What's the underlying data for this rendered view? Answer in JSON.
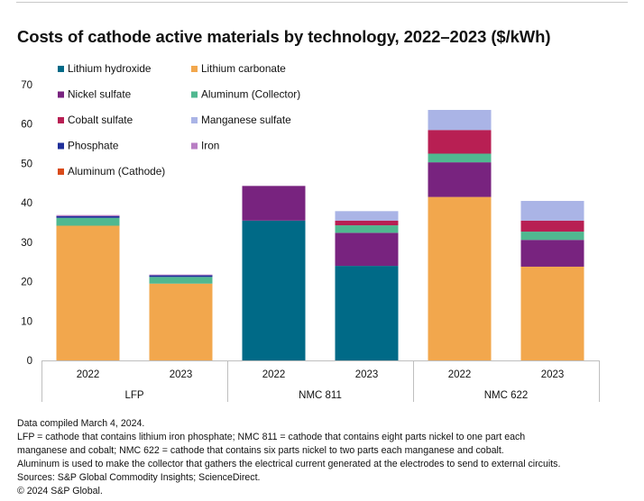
{
  "title": "Costs of cathode active materials by technology, 2022–2023 ($/kWh)",
  "chart_data": {
    "type": "stacked-bar",
    "title": "Costs of cathode active materials by technology, 2022–2023 ($/kWh)",
    "xlabel": "",
    "ylabel": "",
    "ylim": [
      0,
      70
    ],
    "yticks": [
      0,
      10,
      20,
      30,
      40,
      50,
      60,
      70
    ],
    "grid": false,
    "legend_position": "top-left, two columns inside plot",
    "groups": [
      "LFP",
      "NMC 811",
      "NMC 622"
    ],
    "categories": [
      "2022",
      "2023",
      "2022",
      "2023",
      "2022",
      "2023"
    ],
    "category_groups": [
      "LFP",
      "LFP",
      "NMC 811",
      "NMC 811",
      "NMC 622",
      "NMC 622"
    ],
    "series": [
      {
        "name": "Lithium hydroxide",
        "color": "#006a87",
        "values": [
          0,
          0,
          35.5,
          24.0,
          0,
          0
        ]
      },
      {
        "name": "Lithium carbonate",
        "color": "#f2a74d",
        "values": [
          34.2,
          19.5,
          0,
          0,
          41.5,
          23.8
        ]
      },
      {
        "name": "Nickel sulfate",
        "color": "#78237f",
        "values": [
          0,
          0,
          8.8,
          8.4,
          8.8,
          6.8
        ]
      },
      {
        "name": "Aluminum (Collector)",
        "color": "#50b890",
        "values": [
          2.0,
          1.7,
          0,
          1.9,
          2.2,
          2.1
        ]
      },
      {
        "name": "Cobalt sulfate",
        "color": "#b81f53",
        "values": [
          0,
          0,
          0,
          1.2,
          6.0,
          2.8
        ]
      },
      {
        "name": "Manganese sulfate",
        "color": "#aab4e6",
        "values": [
          0,
          0,
          0,
          2.4,
          5.1,
          5.0
        ]
      },
      {
        "name": "Phosphate",
        "color": "#1f2f99",
        "values": [
          0.4,
          0.4,
          0,
          0,
          0,
          0
        ]
      },
      {
        "name": "Iron",
        "color": "#b87ec4",
        "values": [
          0.3,
          0.2,
          0,
          0,
          0,
          0
        ]
      },
      {
        "name": "Aluminum (Cathode)",
        "color": "#d94a1a",
        "values": [
          0,
          0,
          0,
          0,
          0,
          0
        ]
      }
    ]
  },
  "footnotes": [
    "Data compiled March 4, 2024.",
    "LFP = cathode that contains lithium iron phosphate; NMC 811 = cathode that contains eight parts nickel to one part each",
    "manganese and cobalt; NMC 622 = cathode that contains six parts nickel to two parts each manganese and cobalt.",
    "Aluminum is used to make the collector that gathers the electrical current generated at the electrodes to send to external circuits.",
    "Sources: S&P Global Commodity Insights; ScienceDirect.",
    "© 2024 S&P Global."
  ]
}
